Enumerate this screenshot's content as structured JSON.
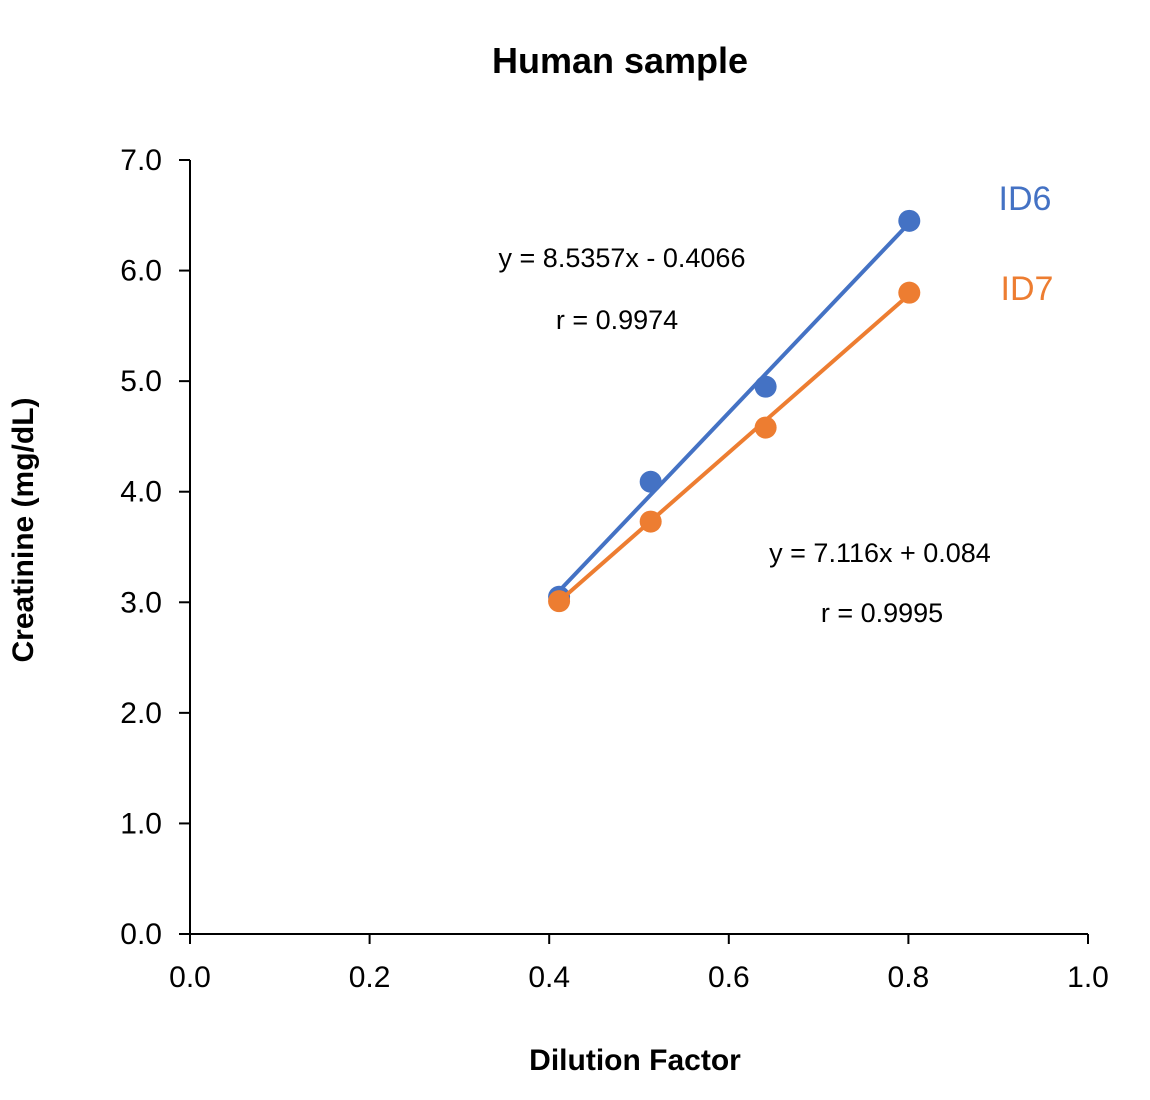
{
  "chart_data": {
    "type": "scatter",
    "title": "Human sample",
    "xlabel": "Dilution Factor",
    "ylabel": "Creatinine (mg/dL)",
    "xlim": [
      0,
      1.0
    ],
    "ylim": [
      0,
      7.0
    ],
    "xticks": [
      "0.0",
      "0.2",
      "0.4",
      "0.6",
      "0.8",
      "1.0"
    ],
    "yticks": [
      "0.0",
      "1.0",
      "2.0",
      "3.0",
      "4.0",
      "5.0",
      "6.0",
      "7.0"
    ],
    "grid": false,
    "legend": "none",
    "series": [
      {
        "name": "ID6",
        "color": "#4472C4",
        "x": [
          0.411,
          0.513,
          0.641,
          0.801
        ],
        "y": [
          3.05,
          4.09,
          4.95,
          6.45
        ],
        "trendline": {
          "slope": 8.5357,
          "intercept": -0.4066
        },
        "equation": "y = 8.5357x - 0.4066",
        "r": "r = 0.9974"
      },
      {
        "name": "ID7",
        "color": "#ED7D31",
        "x": [
          0.411,
          0.513,
          0.641,
          0.801
        ],
        "y": [
          3.01,
          3.73,
          4.58,
          5.8
        ],
        "trendline": {
          "slope": 7.116,
          "intercept": 0.084
        },
        "equation": "y = 7.116x + 0.084",
        "r": "r = 0.9995"
      }
    ]
  }
}
